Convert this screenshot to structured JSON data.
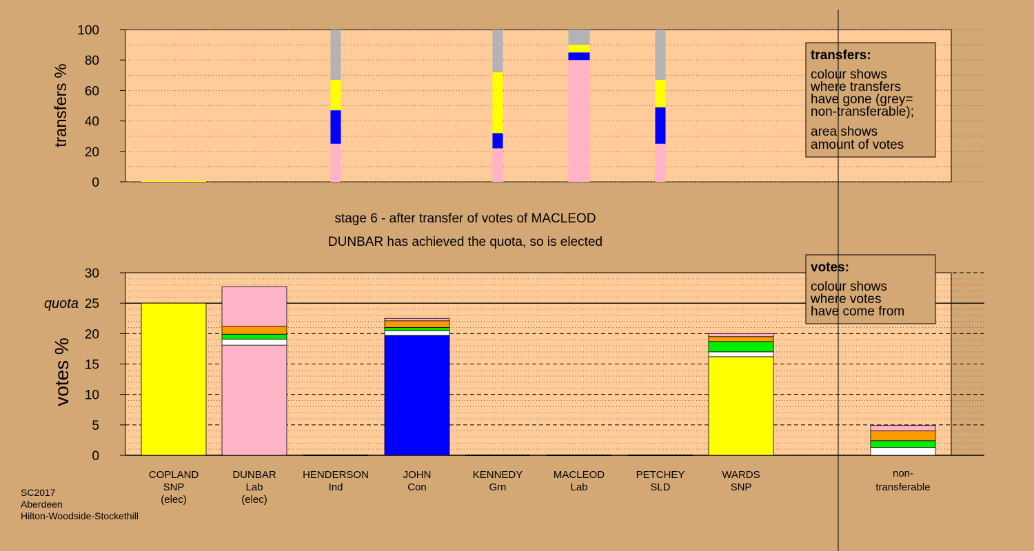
{
  "chart_data": [
    {
      "type": "bar",
      "subtype": "stacked",
      "ylabel": "transfers %",
      "ylim": [
        0,
        100
      ],
      "yticks": [
        0,
        20,
        40,
        60,
        80,
        100
      ],
      "categories": [
        "COPLAND",
        "DUNBAR",
        "HENDERSON",
        "JOHN",
        "KENNEDY",
        "MACLEOD",
        "PETCHEY",
        "WARDS"
      ],
      "colors": {
        "pink": "#ffb3c6",
        "blue": "#0000ff",
        "yellow": "#ffff00",
        "grey": "#b3b3b3"
      },
      "bars": [
        {
          "candidate": "COPLAND",
          "segments": [
            {
              "color": "yellow",
              "value": 0.5
            }
          ],
          "width_scale": 1.0
        },
        {
          "candidate": "HENDERSON",
          "segments": [
            {
              "color": "pink",
              "value": 25
            },
            {
              "color": "blue",
              "value": 22
            },
            {
              "color": "yellow",
              "value": 20
            },
            {
              "color": "grey",
              "value": 33
            }
          ],
          "width_scale": 0.16
        },
        {
          "candidate": "KENNEDY",
          "segments": [
            {
              "color": "pink",
              "value": 22
            },
            {
              "color": "blue",
              "value": 10
            },
            {
              "color": "yellow",
              "value": 40
            },
            {
              "color": "grey",
              "value": 28
            }
          ],
          "width_scale": 0.16
        },
        {
          "candidate": "MACLEOD",
          "segments": [
            {
              "color": "pink",
              "value": 80
            },
            {
              "color": "blue",
              "value": 5
            },
            {
              "color": "yellow",
              "value": 5
            },
            {
              "color": "grey",
              "value": 10
            }
          ],
          "width_scale": 0.33
        },
        {
          "candidate": "PETCHEY",
          "segments": [
            {
              "color": "pink",
              "value": 25
            },
            {
              "color": "blue",
              "value": 24
            },
            {
              "color": "yellow",
              "value": 18
            },
            {
              "color": "grey",
              "value": 33
            }
          ],
          "width_scale": 0.16
        }
      ],
      "legend": {
        "title": "transfers:",
        "lines": [
          "colour shows",
          "where transfers",
          "have gone (grey=",
          "non-transferable);"
        ],
        "lines2": [
          "area shows",
          "amount of votes"
        ]
      }
    },
    {
      "type": "bar",
      "subtype": "stacked",
      "ylabel": "votes %",
      "ylim": [
        0,
        30
      ],
      "yticks": [
        0,
        5,
        10,
        15,
        20,
        25,
        30
      ],
      "quota": 25,
      "quota_label": "quota",
      "colors": {
        "pink": "#ffb3c6",
        "blue": "#0000ff",
        "yellow": "#ffff00",
        "white": "#ffffff",
        "green": "#00ee00",
        "orange": "#ff9900"
      },
      "candidates": [
        {
          "name": "COPLAND",
          "party": "SNP",
          "note": "(elec)",
          "segments": [
            {
              "color": "yellow",
              "value": 25
            }
          ]
        },
        {
          "name": "DUNBAR",
          "party": "Lab",
          "note": "(elec)",
          "segments": [
            {
              "color": "pink",
              "value": 18.1
            },
            {
              "color": "white",
              "value": 1.0
            },
            {
              "color": "green",
              "value": 0.8
            },
            {
              "color": "orange",
              "value": 1.3
            },
            {
              "color": "pink",
              "value": 6.5
            }
          ]
        },
        {
          "name": "HENDERSON",
          "party": "Ind",
          "note": "",
          "segments": []
        },
        {
          "name": "JOHN",
          "party": "Con",
          "note": "",
          "segments": [
            {
              "color": "blue",
              "value": 19.7
            },
            {
              "color": "white",
              "value": 0.8
            },
            {
              "color": "green",
              "value": 0.5
            },
            {
              "color": "orange",
              "value": 1.1
            },
            {
              "color": "pink",
              "value": 0.4
            }
          ]
        },
        {
          "name": "KENNEDY",
          "party": "Grn",
          "note": "",
          "segments": []
        },
        {
          "name": "MACLEOD",
          "party": "Lab",
          "note": "",
          "segments": []
        },
        {
          "name": "PETCHEY",
          "party": "SLD",
          "note": "",
          "segments": []
        },
        {
          "name": "WARDS",
          "party": "SNP",
          "note": "",
          "segments": [
            {
              "color": "yellow",
              "value": 16.2
            },
            {
              "color": "white",
              "value": 0.8
            },
            {
              "color": "green",
              "value": 1.7
            },
            {
              "color": "orange",
              "value": 0.8
            },
            {
              "color": "pink",
              "value": 0.5
            }
          ]
        }
      ],
      "nontransferable": {
        "label1": "non-",
        "label2": "transferable",
        "segments": [
          {
            "color": "white",
            "value": 1.3
          },
          {
            "color": "green",
            "value": 1.1
          },
          {
            "color": "orange",
            "value": 1.6
          },
          {
            "color": "pink",
            "value": 0.9
          }
        ]
      },
      "legend": {
        "title": "votes:",
        "lines": [
          "colour shows",
          "where votes",
          "have come from"
        ]
      }
    }
  ],
  "stage_line1": "stage 6 - after transfer of votes of MACLEOD",
  "stage_line2": "DUNBAR has achieved the quota, so is elected",
  "footer": [
    "SC2017",
    "Aberdeen",
    "Hilton-Woodside-Stockethill"
  ]
}
